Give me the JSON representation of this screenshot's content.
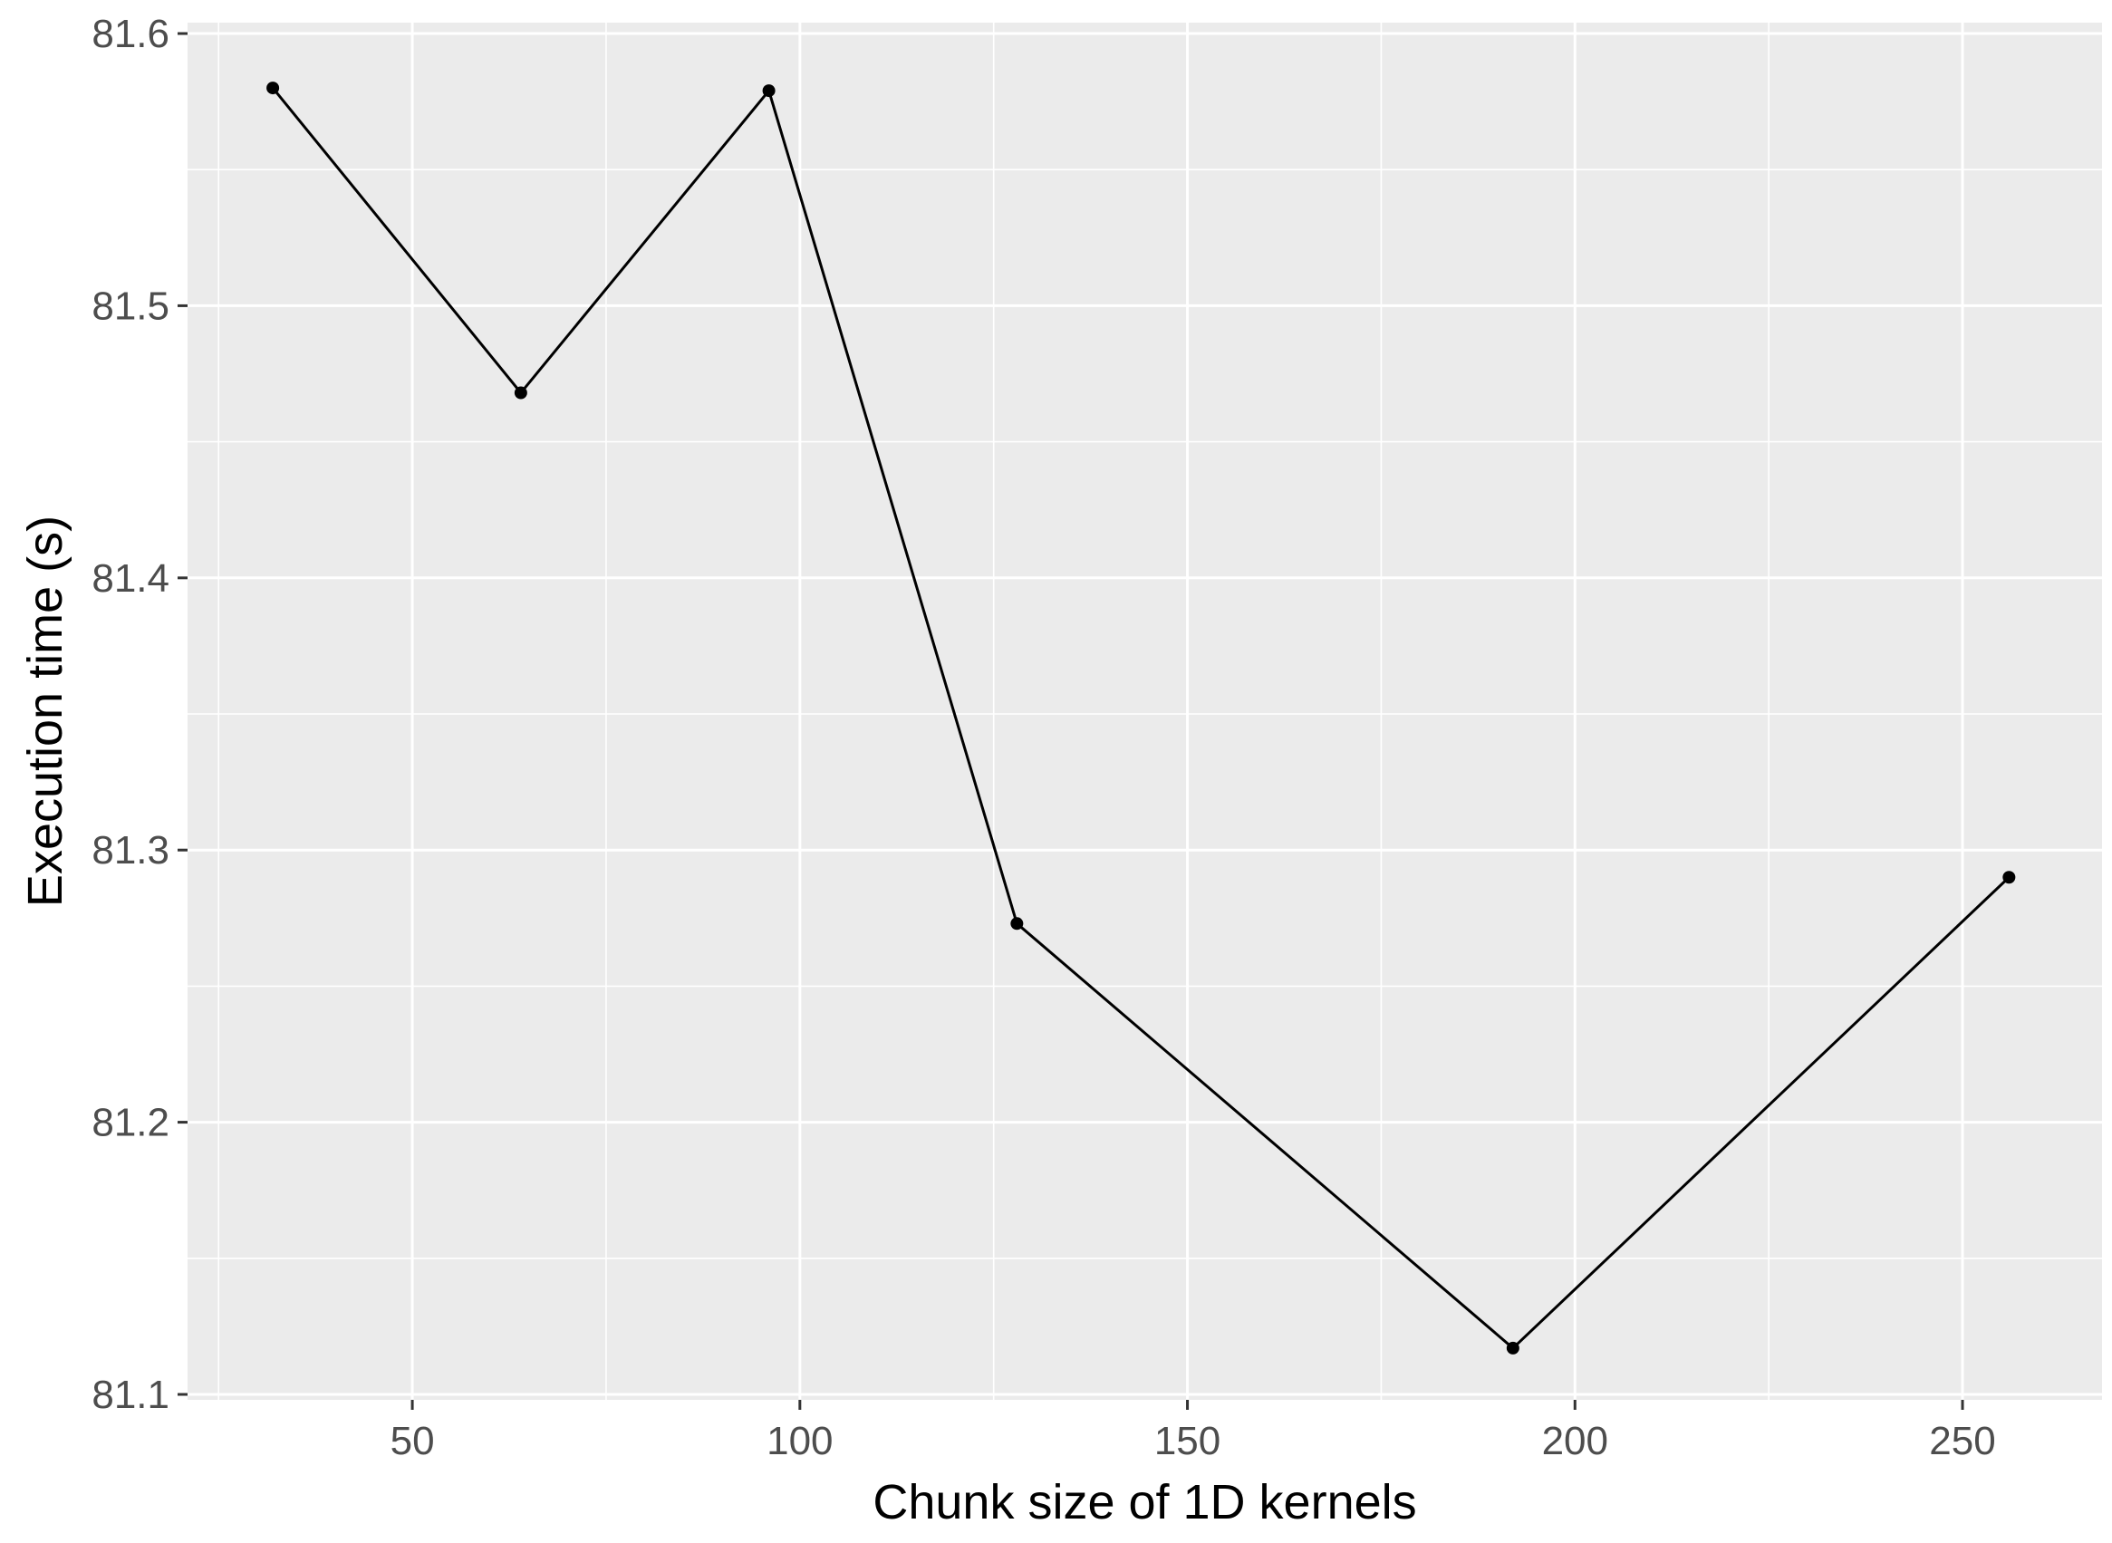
{
  "chart_data": {
    "type": "line",
    "xlabel": "Chunk size of 1D kernels",
    "ylabel": "Execution time (s)",
    "xlim": [
      21,
      268
    ],
    "ylim": [
      81.098,
      81.604
    ],
    "x_ticks": [
      50,
      100,
      150,
      200,
      250
    ],
    "x_tick_labels": [
      "50",
      "100",
      "150",
      "200",
      "250"
    ],
    "y_ticks": [
      81.1,
      81.2,
      81.3,
      81.4,
      81.5,
      81.6
    ],
    "y_tick_labels": [
      "81.1",
      "81.2",
      "81.3",
      "81.4",
      "81.5",
      "81.6"
    ],
    "series": [
      {
        "x": [
          32,
          64,
          96,
          128,
          192,
          256
        ],
        "y": [
          81.58,
          81.468,
          81.579,
          81.273,
          81.117,
          81.29
        ]
      }
    ],
    "grid": true,
    "colors": {
      "panel": "#ebebeb",
      "grid": "#ffffff",
      "line": "#000000",
      "tick_text": "#4d4d4d"
    }
  }
}
